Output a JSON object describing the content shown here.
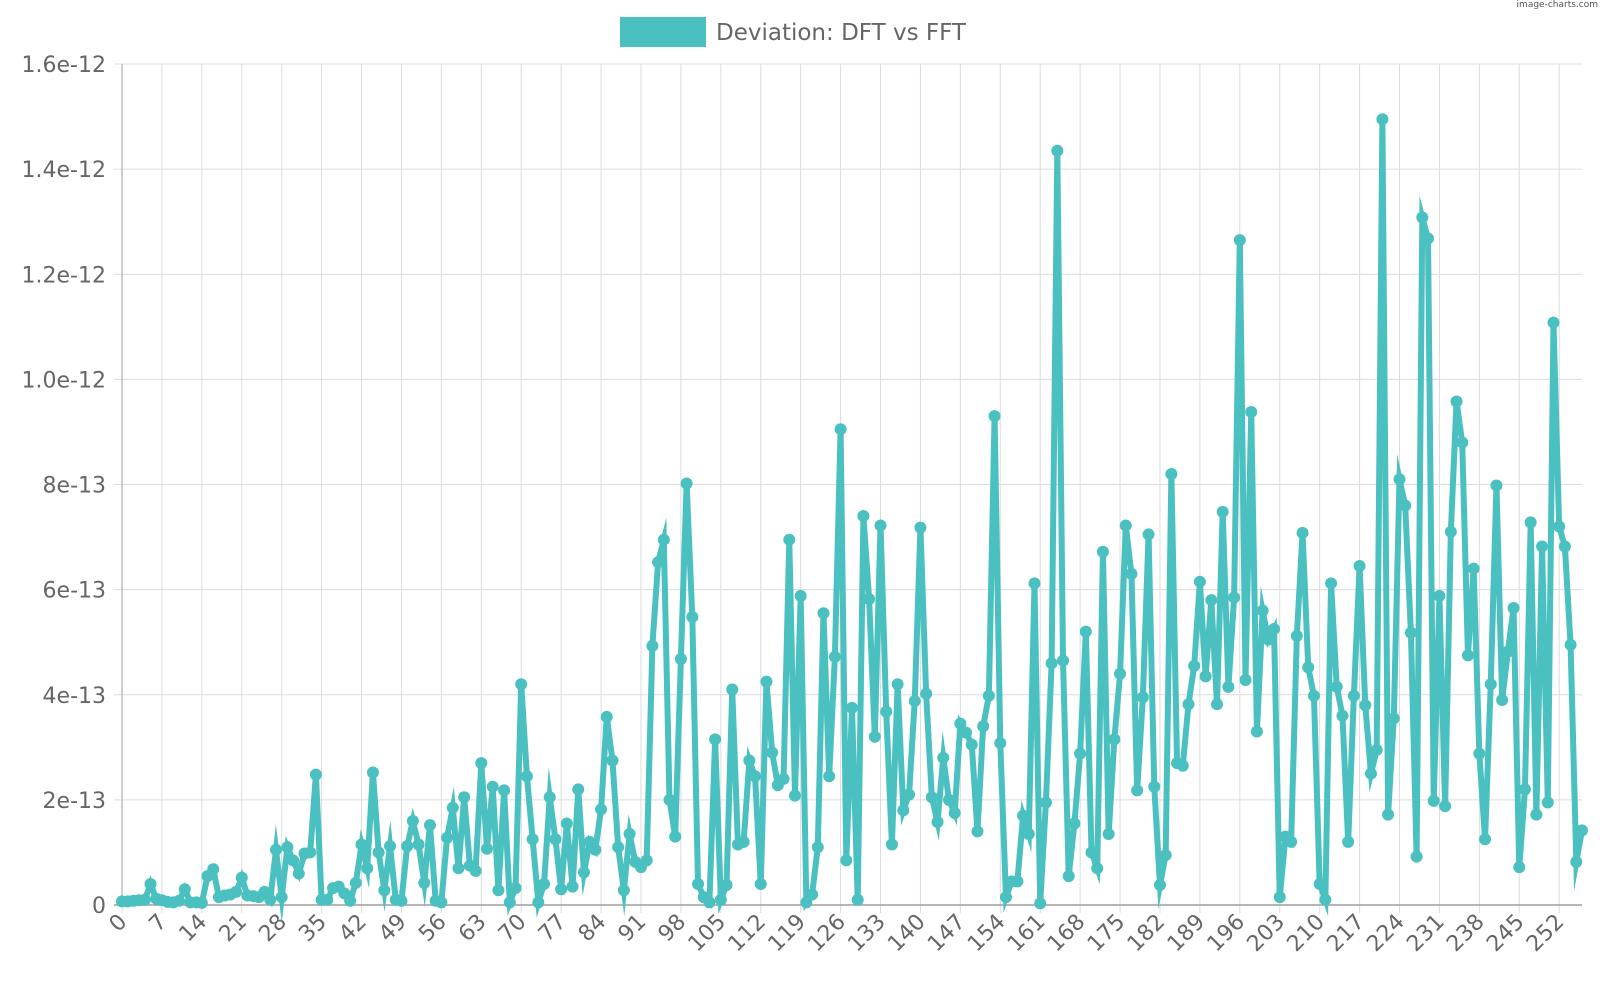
{
  "watermark": "image-charts.com",
  "chart_data": {
    "type": "line",
    "title": "",
    "xlabel": "",
    "ylabel": "",
    "legend": {
      "position": "top",
      "label": "Deviation: DFT vs FFT"
    },
    "grid": true,
    "color": "#4bc0c0",
    "ylim": [
      0,
      1.6e-12
    ],
    "yticks": [
      {
        "value": 0,
        "label": "0"
      },
      {
        "value": 2e-13,
        "label": "2e-13"
      },
      {
        "value": 4e-13,
        "label": "4e-13"
      },
      {
        "value": 6e-13,
        "label": "6e-13"
      },
      {
        "value": 8e-13,
        "label": "8e-13"
      },
      {
        "value": 1e-12,
        "label": "1.0e-12"
      },
      {
        "value": 1.2e-12,
        "label": "1.2e-12"
      },
      {
        "value": 1.4e-12,
        "label": "1.4e-12"
      },
      {
        "value": 1.6e-12,
        "label": "1.6e-12"
      }
    ],
    "xtick_step": 7,
    "xtick_labels": [
      "0",
      "7",
      "14",
      "21",
      "28",
      "35",
      "42",
      "49",
      "56",
      "63",
      "70",
      "77",
      "84",
      "91",
      "98",
      "105",
      "112",
      "119",
      "126",
      "133",
      "140",
      "147",
      "154",
      "161",
      "168",
      "175",
      "182",
      "189",
      "196",
      "203",
      "210",
      "217",
      "224",
      "231",
      "238",
      "245",
      "252"
    ],
    "series": [
      {
        "name": "Deviation: DFT vs FFT",
        "values": [
          0.07,
          0.07,
          0.08,
          0.09,
          0.1,
          0.4,
          0.12,
          0.09,
          0.06,
          0.05,
          0.08,
          0.3,
          0.05,
          0.05,
          0.04,
          0.55,
          0.68,
          0.15,
          0.18,
          0.2,
          0.25,
          0.52,
          0.18,
          0.17,
          0.15,
          0.25,
          0.1,
          1.05,
          0.15,
          1.1,
          0.85,
          0.6,
          0.98,
          1.0,
          2.48,
          0.1,
          0.1,
          0.32,
          0.35,
          0.22,
          0.08,
          0.42,
          1.15,
          0.7,
          2.52,
          1.0,
          0.28,
          1.12,
          0.1,
          0.08,
          1.12,
          1.6,
          1.15,
          0.42,
          1.52,
          0.08,
          0.05,
          1.28,
          1.85,
          0.7,
          2.05,
          0.75,
          0.65,
          2.7,
          1.07,
          2.25,
          0.28,
          2.18,
          0.05,
          0.32,
          4.2,
          2.45,
          1.25,
          0.05,
          0.4,
          2.05,
          1.25,
          0.3,
          1.55,
          0.35,
          2.2,
          0.62,
          1.2,
          1.05,
          1.82,
          3.58,
          2.75,
          1.1,
          0.28,
          1.35,
          0.82,
          0.72,
          0.85,
          4.93,
          6.52,
          6.95,
          2.0,
          1.3,
          4.68,
          8.02,
          5.48,
          0.4,
          0.15,
          0.05,
          3.15,
          0.1,
          0.38,
          4.1,
          1.15,
          1.2,
          2.75,
          2.45,
          0.4,
          4.25,
          2.9,
          2.28,
          2.4,
          6.95,
          2.08,
          5.88,
          0.05,
          0.2,
          1.1,
          5.55,
          2.45,
          4.72,
          9.05,
          0.85,
          3.75,
          0.1,
          7.4,
          5.82,
          3.2,
          7.22,
          3.68,
          1.15,
          4.2,
          1.8,
          2.1,
          3.88,
          7.18,
          4.02,
          2.05,
          1.58,
          2.8,
          2.0,
          1.75,
          3.45,
          3.28,
          3.05,
          1.4,
          3.4,
          3.98,
          9.3,
          3.08,
          0.15,
          0.45,
          0.45,
          1.7,
          1.35,
          6.12,
          0.03,
          1.95,
          4.6,
          14.35,
          4.65,
          0.55,
          1.55,
          2.88,
          5.2,
          1.0,
          0.7,
          6.72,
          1.35,
          3.15,
          4.4,
          7.22,
          6.3,
          2.18,
          3.95,
          7.05,
          2.25,
          0.38,
          0.95,
          8.2,
          2.7,
          2.65,
          3.82,
          4.55,
          6.15,
          4.35,
          5.8,
          3.82,
          7.48,
          4.15,
          5.85,
          12.65,
          4.28,
          9.38,
          3.3,
          5.6,
          5.05,
          5.25,
          0.15,
          1.3,
          1.2,
          5.12,
          7.08,
          4.52,
          3.98,
          0.4,
          0.1,
          6.12,
          4.15,
          3.6,
          1.2,
          3.98,
          6.45,
          3.8,
          2.5,
          2.95,
          14.95,
          1.72,
          3.55,
          8.1,
          7.6,
          5.18,
          0.92,
          13.08,
          12.68,
          1.98,
          5.88,
          1.88,
          7.1,
          9.58,
          8.8,
          4.75,
          6.4,
          2.88,
          1.25,
          4.2,
          7.98,
          3.9,
          4.82,
          5.65,
          0.72,
          2.2,
          7.28,
          1.72,
          6.82,
          1.95,
          11.08,
          7.2,
          6.82,
          4.95,
          0.82,
          1.42
        ],
        "value_scale": 1e-13
      }
    ]
  }
}
